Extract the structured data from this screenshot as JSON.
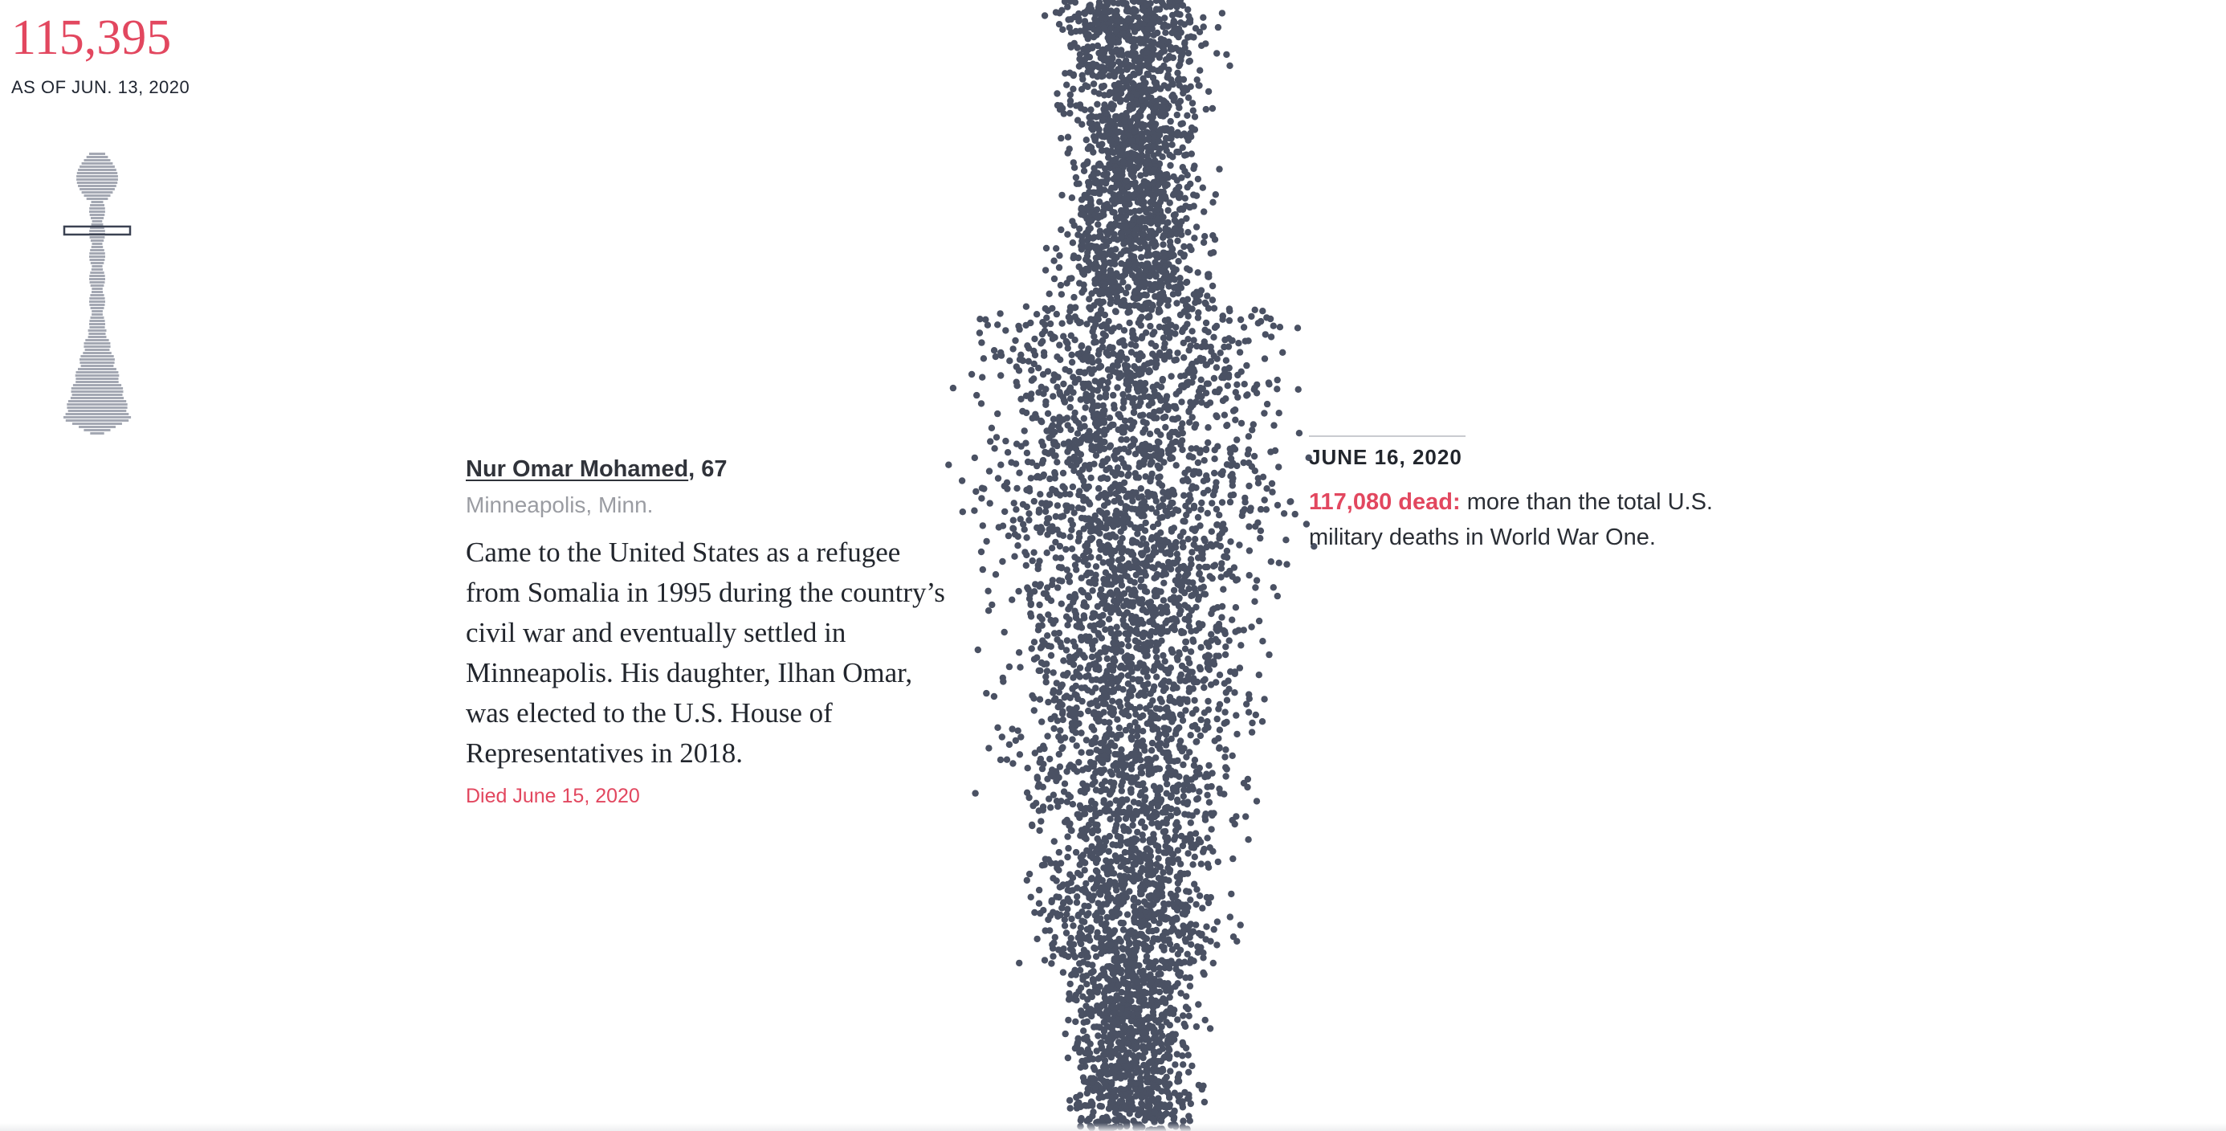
{
  "counter": {
    "number": "115,395",
    "as_of": "AS OF JUN. 13, 2020"
  },
  "profile": {
    "name": "Nur Omar Mohamed",
    "age": ", 67",
    "location": "Minneapolis, Minn.",
    "bio": "Came to the United States as a refugee from Somalia in 1995 during the country’s civil war and eventually settled in Minneapolis. His daughter, Ilhan Omar, was elected to the U.S. House of Representatives in 2018.",
    "died": "Died June 15, 2020"
  },
  "milestone": {
    "date": "JUNE 16, 2020",
    "highlight": "117,080 dead:",
    "text": " more than the total U.S. military deaths in World War One."
  },
  "colors": {
    "accent": "#e2475f",
    "dots": "#4a5163",
    "minimap": "#a4a8b3"
  }
}
